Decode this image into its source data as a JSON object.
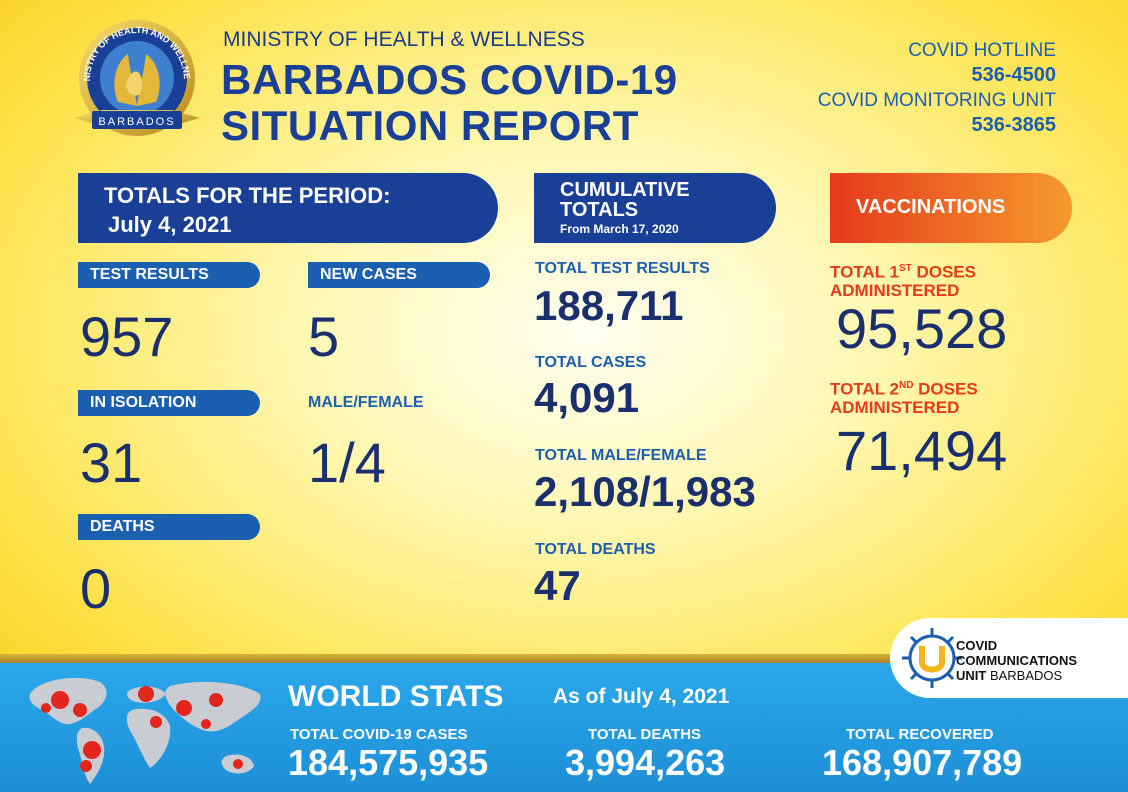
{
  "header": {
    "logo_text_top": "MINISTRY OF HEALTH AND WELLNESS",
    "logo_text_bottom": "BARBADOS",
    "ministry": "MINISTRY OF HEALTH & WELLNESS",
    "title_line1": "BARBADOS COVID-19",
    "title_line2": "SITUATION REPORT",
    "hotline_label": "COVID HOTLINE",
    "hotline_number": "536-4500",
    "monitoring_label": "COVID MONITORING UNIT",
    "monitoring_number": "536-3865"
  },
  "period": {
    "heading": "TOTALS FOR THE PERIOD:",
    "date": "July 4, 2021",
    "test_results_label": "TEST RESULTS",
    "test_results": "957",
    "new_cases_label": "NEW CASES",
    "new_cases": "5",
    "isolation_label": "IN ISOLATION",
    "isolation": "31",
    "male_female_label": "MALE/FEMALE",
    "male_female": "1/4",
    "deaths_label": "DEATHS",
    "deaths": "0"
  },
  "cumulative": {
    "heading1": "CUMULATIVE",
    "heading2": "TOTALS",
    "subheading": "From March 17, 2020",
    "test_results_label": "TOTAL TEST RESULTS",
    "test_results": "188,711",
    "cases_label": "TOTAL CASES",
    "cases": "4,091",
    "male_female_label": "TOTAL MALE/FEMALE",
    "male_female": "2,108/1,983",
    "deaths_label": "TOTAL DEATHS",
    "deaths": "47"
  },
  "vaccinations": {
    "heading": "VACCINATIONS",
    "first_prefix": "TOTAL 1",
    "first_sup": "ST",
    "first_suffix": " DOSES",
    "first_line2": "ADMINISTERED",
    "first_value": "95,528",
    "second_prefix": "TOTAL 2",
    "second_sup": "ND",
    "second_suffix": " DOSES",
    "second_line2": "ADMINISTERED",
    "second_value": "71,494"
  },
  "world": {
    "heading": "WORLD STATS",
    "as_of": "As of July 4, 2021",
    "cases_label": "TOTAL COVID-19 CASES",
    "cases": "184,575,935",
    "deaths_label": "TOTAL DEATHS",
    "deaths": "3,994,263",
    "recovered_label": "TOTAL RECOVERED",
    "recovered": "168,907,789"
  },
  "badge": {
    "line1": "COVID",
    "line2": "COMMUNICATIONS",
    "line3_bold": "UNIT",
    "line3_thin": " BARBADOS"
  },
  "colors": {
    "navy": "#1a3f96",
    "blue": "#1a5fb0",
    "red": "#e63a1c",
    "footer_blue": "#1e8fd6"
  }
}
